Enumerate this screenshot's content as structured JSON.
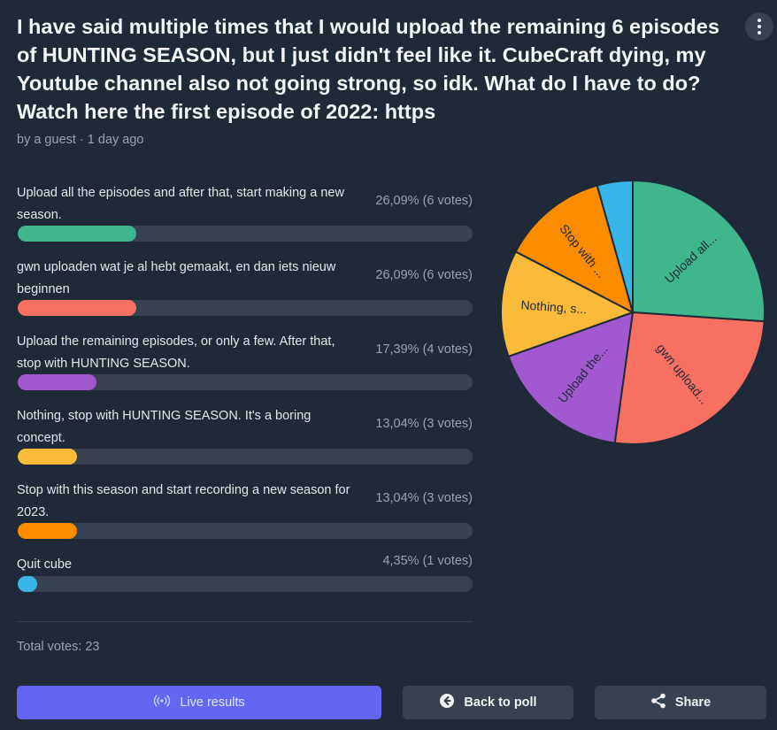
{
  "poll": {
    "title": "I have said multiple times that I would upload the remaining 6 episodes of HUNTING SEASON, but I just didn't feel like it. CubeCraft dying, my Youtube channel also not going strong, so idk. What do I have to do? Watch here the first episode of 2022: https",
    "meta": "by a guest · 1 day ago",
    "total_votes": "Total votes: 23"
  },
  "options": [
    {
      "label": "Upload all the episodes and after that, start making a new season.",
      "percent_text": "26,09% (6 votes)",
      "share": 0.2609,
      "color": "#3fb68b",
      "pie_label": "Upload all..."
    },
    {
      "label": "gwn uploaden wat je al hebt gemaakt, en dan iets nieuw beginnen",
      "percent_text": "26,09% (6 votes)",
      "share": 0.2609,
      "color": "#f87062",
      "pie_label": "gwn upload..."
    },
    {
      "label": "Upload the remaining episodes, or only a few. After that, stop with HUNTING SEASON.",
      "percent_text": "17,39% (4 votes)",
      "share": 0.1739,
      "color": "#a259cf",
      "pie_label": "Upload the..."
    },
    {
      "label": "Nothing, stop with HUNTING SEASON. It's a boring concept.",
      "percent_text": "13,04% (3 votes)",
      "share": 0.1304,
      "color": "#fbbb3a",
      "pie_label": "Nothing, s..."
    },
    {
      "label": "Stop with this season and start recording a new season for 2023.",
      "percent_text": "13,04% (3 votes)",
      "share": 0.1304,
      "color": "#fb8c00",
      "pie_label": "Stop with ..."
    },
    {
      "label": "Quit cube",
      "percent_text": "4,35% (1 votes)",
      "share": 0.0435,
      "color": "#38b6e8",
      "pie_label": ""
    }
  ],
  "buttons": {
    "live": "Live results",
    "back": "Back to poll",
    "share": "Share"
  },
  "icons": {
    "menu": "more-vertical-icon",
    "live": "broadcast-icon",
    "back": "arrow-left-circle-icon",
    "share": "share-icon"
  }
}
